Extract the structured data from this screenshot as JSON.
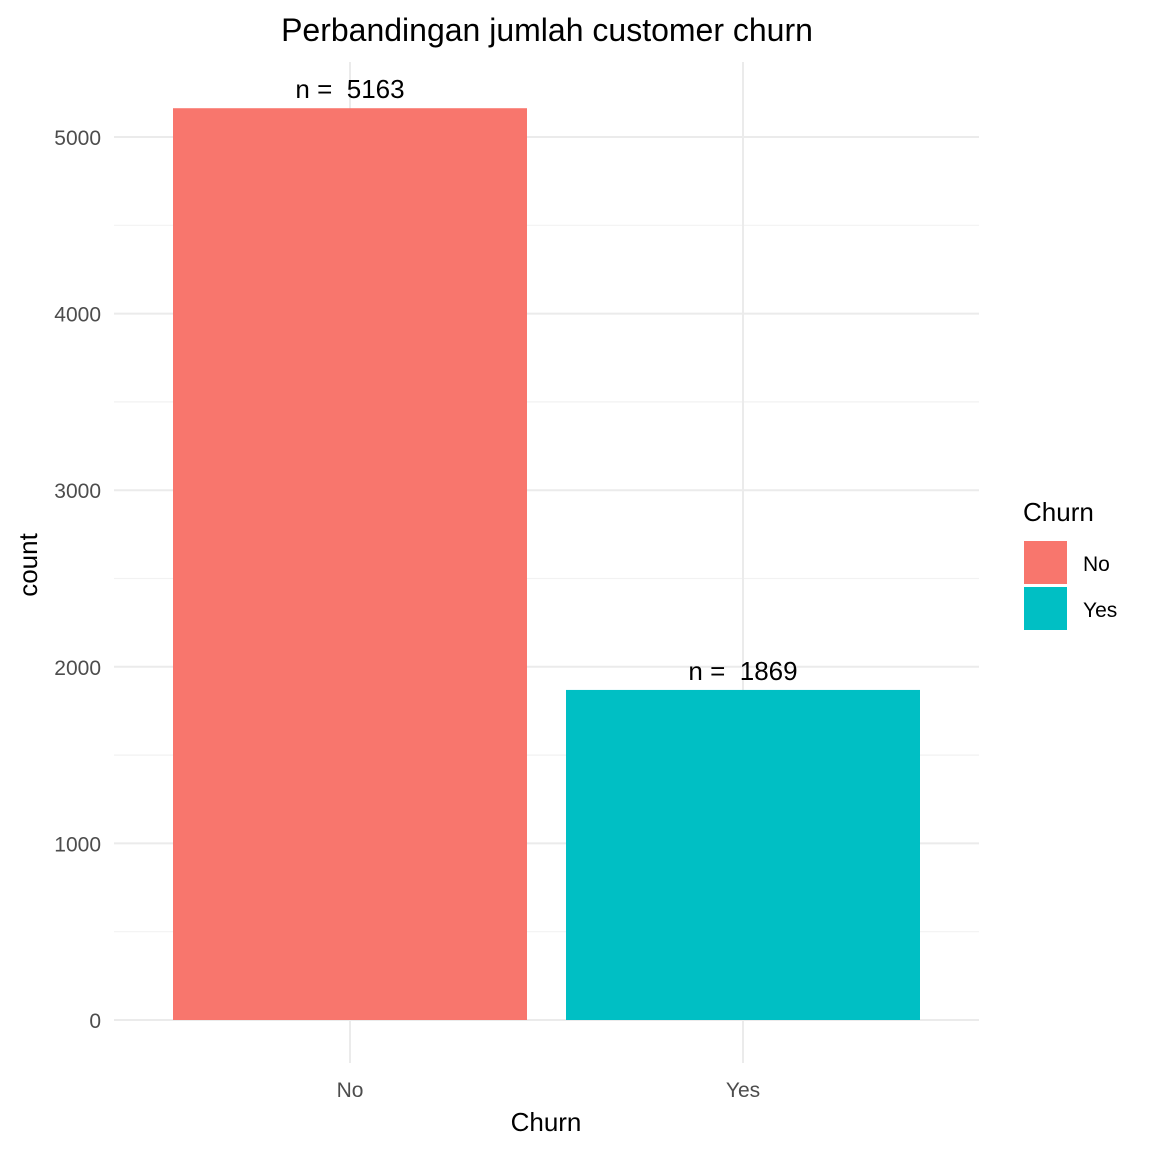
{
  "chart_data": {
    "type": "bar",
    "title": "Perbandingan jumlah customer churn",
    "xlabel": "Churn",
    "ylabel": "count",
    "categories": [
      "No",
      "Yes"
    ],
    "values": [
      5163,
      1869
    ],
    "data_labels": [
      "n =  5163",
      "n =  1869"
    ],
    "colors": [
      "#F8766D",
      "#00BFC4"
    ],
    "ylim": [
      0,
      5420
    ],
    "y_ticks": [
      0,
      1000,
      2000,
      3000,
      4000,
      5000
    ],
    "y_tick_labels": [
      "0",
      "1000",
      "2000",
      "3000",
      "4000",
      "5000"
    ],
    "grid": true,
    "legend": {
      "title": "Churn",
      "position": "right",
      "entries": [
        "No",
        "Yes"
      ]
    }
  }
}
